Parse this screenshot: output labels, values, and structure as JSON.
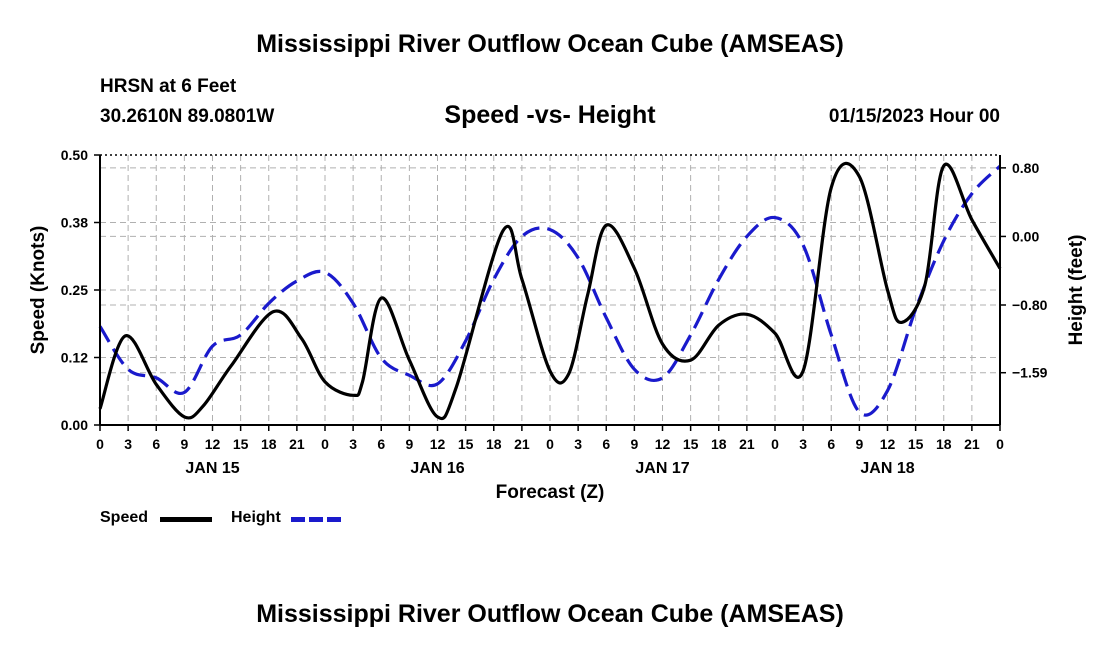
{
  "page": {
    "title_top": "Mississippi River Outflow Ocean Cube (AMSEAS)",
    "title_bottom": "Mississippi River Outflow Ocean Cube (AMSEAS)",
    "station": "HRSN at 6 Feet",
    "coords": "30.2610N  89.0801W",
    "date": "01/15/2023 Hour 00"
  },
  "colors": {
    "speed": "#000000",
    "height": "#1a1acc",
    "grid": "#b0b0b0"
  },
  "chart_data": {
    "type": "line",
    "title": "Speed -vs- Height",
    "xlabel": "Forecast (Z)",
    "ylabel": "Speed (Knots)",
    "ylabel_right": "Height (feet)",
    "xlim": [
      0,
      96
    ],
    "ylim": [
      0,
      0.5
    ],
    "ylim_right": [
      -2.2,
      0.95
    ],
    "x_ticks": [
      0,
      3,
      6,
      9,
      12,
      15,
      18,
      21,
      24,
      27,
      30,
      33,
      36,
      39,
      42,
      45,
      48,
      51,
      54,
      57,
      60,
      63,
      66,
      69,
      72,
      75,
      78,
      81,
      84,
      87,
      90,
      93,
      96
    ],
    "x_tick_labels": [
      "0",
      "3",
      "6",
      "9",
      "12",
      "15",
      "18",
      "21",
      "0",
      "3",
      "6",
      "9",
      "12",
      "15",
      "18",
      "21",
      "0",
      "3",
      "6",
      "9",
      "12",
      "15",
      "18",
      "21",
      "0",
      "3",
      "6",
      "9",
      "12",
      "15",
      "18",
      "21",
      "0"
    ],
    "day_labels": [
      {
        "x": 12,
        "label": "JAN 15"
      },
      {
        "x": 36,
        "label": "JAN 16"
      },
      {
        "x": 60,
        "label": "JAN 17"
      },
      {
        "x": 84,
        "label": "JAN 18"
      }
    ],
    "y_ticks_left": [
      0.0,
      0.125,
      0.25,
      0.375,
      0.5
    ],
    "y_tick_labels_left": [
      "0.00",
      "0.12",
      "0.25",
      "0.38",
      "0.50"
    ],
    "y_ticks_right": [
      -1.59,
      -0.8,
      0.0,
      0.8
    ],
    "y_tick_labels_right": [
      "−1.59",
      "−0.80",
      "0.00",
      "0.80"
    ],
    "grid": true,
    "legend": [
      {
        "label": "Speed",
        "style": "solid"
      },
      {
        "label": "Height",
        "style": "dashed"
      }
    ],
    "series": [
      {
        "name": "Speed",
        "axis": "left",
        "style": "solid",
        "x": [
          0,
          2.7,
          6,
          9,
          11,
          14,
          18.5,
          21.5,
          24,
          27,
          28,
          30,
          33,
          36,
          38,
          43,
          45,
          48,
          50,
          52,
          54,
          57,
          60,
          63,
          66,
          69,
          72,
          75,
          78,
          81,
          84,
          85.5,
          88,
          90,
          93,
          96
        ],
        "y": [
          0.03,
          0.165,
          0.075,
          0.015,
          0.035,
          0.11,
          0.21,
          0.16,
          0.08,
          0.055,
          0.08,
          0.235,
          0.12,
          0.015,
          0.07,
          0.36,
          0.27,
          0.1,
          0.095,
          0.24,
          0.37,
          0.29,
          0.15,
          0.12,
          0.185,
          0.205,
          0.17,
          0.1,
          0.44,
          0.46,
          0.25,
          0.19,
          0.26,
          0.48,
          0.38,
          0.29
        ]
      },
      {
        "name": "Height",
        "axis": "right",
        "style": "dashed",
        "x": [
          0,
          3,
          6,
          9,
          12,
          15,
          18,
          21,
          24,
          27,
          30,
          33,
          36,
          39,
          42,
          45,
          48,
          51,
          54,
          57,
          60,
          63,
          66,
          69,
          72,
          75,
          78,
          81,
          84,
          87,
          90,
          93,
          96
        ],
        "y": [
          -1.05,
          -1.55,
          -1.65,
          -1.82,
          -1.28,
          -1.15,
          -0.78,
          -0.52,
          -0.42,
          -0.78,
          -1.42,
          -1.62,
          -1.72,
          -1.22,
          -0.5,
          0.0,
          0.08,
          -0.25,
          -0.95,
          -1.55,
          -1.65,
          -1.15,
          -0.5,
          0.0,
          0.22,
          -0.1,
          -1.15,
          -2.05,
          -1.8,
          -0.85,
          -0.05,
          0.5,
          0.82
        ]
      }
    ]
  }
}
